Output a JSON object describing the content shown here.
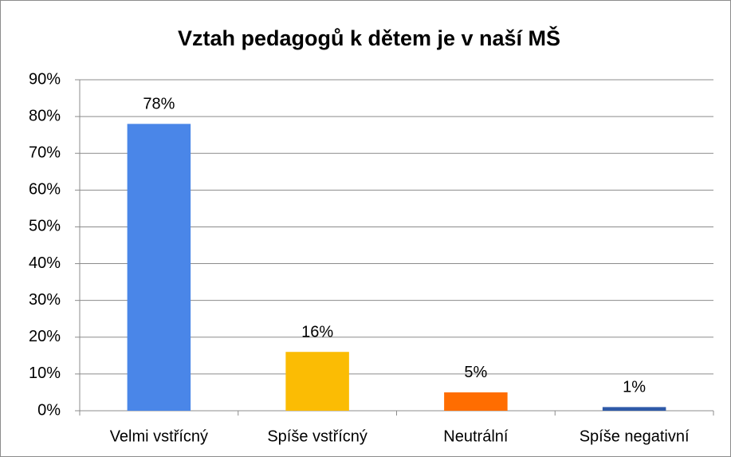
{
  "chart_data": {
    "type": "bar",
    "title": "Vztah pedagogů k dětem je v naší MŠ",
    "categories": [
      "Velmi vstřícný",
      "Spíše vstřícný",
      "Neutrální",
      "Spíše negativní"
    ],
    "values": [
      78,
      16,
      5,
      1
    ],
    "value_labels": [
      "78%",
      "16%",
      "5%",
      "1%"
    ],
    "colors": [
      "#4a86e8",
      "#fbbc04",
      "#ff6d01",
      "#2f5aa8"
    ],
    "ylim": [
      0,
      90
    ],
    "yticks": [
      {
        "value": 0,
        "label": "0%"
      },
      {
        "value": 10,
        "label": "10%"
      },
      {
        "value": 20,
        "label": "20%"
      },
      {
        "value": 30,
        "label": "30%"
      },
      {
        "value": 40,
        "label": "40%"
      },
      {
        "value": 50,
        "label": "50%"
      },
      {
        "value": 60,
        "label": "60%"
      },
      {
        "value": 70,
        "label": "70%"
      },
      {
        "value": 80,
        "label": "80%"
      },
      {
        "value": 90,
        "label": "90%"
      }
    ],
    "grid": true
  }
}
